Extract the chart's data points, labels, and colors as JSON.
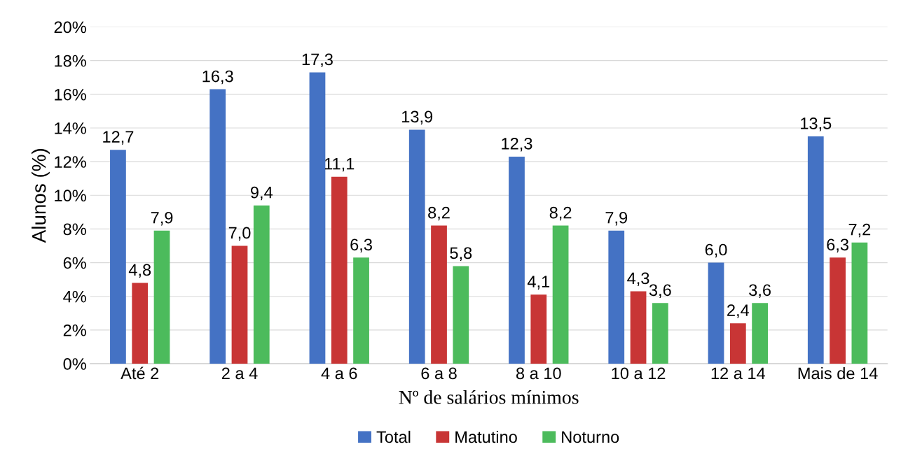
{
  "chart_data": {
    "type": "bar",
    "xlabel": "Nº de salários mínimos",
    "ylabel": "Alunos (%)",
    "categories": [
      "Até 2",
      "2 a 4",
      "4 a 6",
      "6 a 8",
      "8 a 10",
      "10 a 12",
      "12 a 14",
      "Mais de 14"
    ],
    "series": [
      {
        "name": "Total",
        "color": "#4472c4",
        "values": [
          12.7,
          16.3,
          17.3,
          13.9,
          12.3,
          7.9,
          6.0,
          13.5
        ],
        "value_labels": [
          "12,7",
          "16,3",
          "17,3",
          "13,9",
          "12,3",
          "7,9",
          "6,0",
          "13,5"
        ]
      },
      {
        "name": "Matutino",
        "color": "#c83535",
        "values": [
          4.8,
          7.0,
          11.1,
          8.2,
          4.1,
          4.3,
          2.4,
          6.3
        ],
        "value_labels": [
          "4,8",
          "7,0",
          "11,1",
          "8,2",
          "4,1",
          "4,3",
          "2,4",
          "6,3"
        ]
      },
      {
        "name": "Noturno",
        "color": "#4cbb5c",
        "values": [
          7.9,
          9.4,
          6.3,
          5.8,
          8.2,
          3.6,
          3.6,
          7.2
        ],
        "value_labels": [
          "7,9",
          "9,4",
          "6,3",
          "5,8",
          "8,2",
          "3,6",
          "3,6",
          "7,2"
        ]
      }
    ],
    "ylim": [
      0,
      20
    ],
    "yticks": [
      {
        "value": 0,
        "label": "0%"
      },
      {
        "value": 2,
        "label": "2%"
      },
      {
        "value": 4,
        "label": "4%"
      },
      {
        "value": 6,
        "label": "6%"
      },
      {
        "value": 8,
        "label": "8%"
      },
      {
        "value": 10,
        "label": "10%"
      },
      {
        "value": 12,
        "label": "12%"
      },
      {
        "value": 14,
        "label": "14%"
      },
      {
        "value": 16,
        "label": "16%"
      },
      {
        "value": 18,
        "label": "18%"
      },
      {
        "value": 20,
        "label": "20%"
      }
    ],
    "grid": "y",
    "legend": "bottom"
  }
}
